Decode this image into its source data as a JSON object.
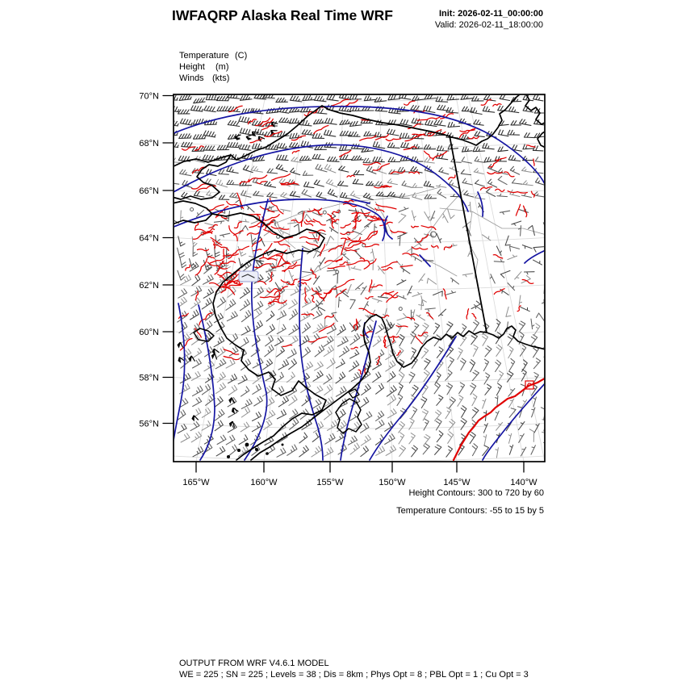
{
  "header": {
    "title": "IWFAQRP Alaska Real Time WRF",
    "init_line": "Init: 2026-02-11_00:00:00",
    "valid_line": "Valid: 2026-02-11_18:00:00"
  },
  "legend": {
    "fields": [
      {
        "label": "Temperature",
        "unit": "(C)"
      },
      {
        "label": "Height",
        "unit": "(m)"
      },
      {
        "label": "Winds",
        "unit": "(kts)"
      }
    ]
  },
  "map": {
    "lat_ticks": [
      "70°N",
      "68°N",
      "66°N",
      "64°N",
      "62°N",
      "60°N",
      "58°N",
      "56°N"
    ],
    "lon_ticks": [
      "165°W",
      "160°W",
      "155°W",
      "150°W",
      "145°W",
      "140°W"
    ]
  },
  "contour_info": {
    "height": "Height Contours: 300 to 720 by 60",
    "temperature": "Temperature Contours: -55 to 15 by 5"
  },
  "footer": {
    "line1": "OUTPUT FROM WRF V4.6.1 MODEL",
    "line2": "WE = 225 ; SN = 225 ; Levels = 38 ; Dis = 8km ; Phys Opt = 8 ; PBL Opt = 1 ; Cu Opt = 3"
  },
  "colors": {
    "height_contour": "#1515a2",
    "temperature_contour": "#e00000",
    "height_text": "#2633c8",
    "temperature_text": "#ff4545",
    "coast": "#000000",
    "graticule": "#dcdcdc",
    "rivers": "#9a9a9a",
    "barb_dark": "#2f2f2f",
    "barb_mid": "#5f5f5f",
    "barb_light": "#8f8f8f"
  }
}
